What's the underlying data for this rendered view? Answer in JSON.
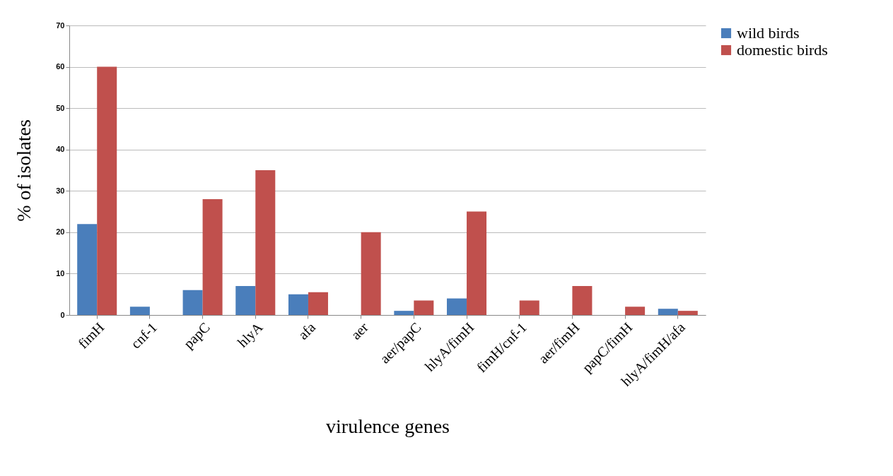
{
  "chart_data": {
    "type": "bar",
    "xlabel": "virulence genes",
    "ylabel": "% of isolates",
    "categories": [
      "fimH",
      "cnf-1",
      "papC",
      "hlyA",
      "afa",
      "aer",
      "aer/papC",
      "hlyA/fimH",
      "fimH/cnf-1",
      "aer/fimH",
      "papC/fimH",
      "hlyA/fimH/afa"
    ],
    "series": [
      {
        "name": "wild birds",
        "color": "#4a7ebb",
        "values": [
          22,
          2,
          6,
          7,
          5,
          0,
          1,
          4,
          0,
          0,
          0,
          1.5
        ]
      },
      {
        "name": "domestic birds",
        "color": "#c0504d",
        "values": [
          60,
          0,
          28,
          35,
          5.5,
          20,
          3.5,
          25,
          3.5,
          7,
          2,
          1
        ]
      }
    ],
    "ylim": [
      0,
      70
    ],
    "yticks": [
      0,
      10,
      20,
      30,
      40,
      50,
      60,
      70
    ],
    "grid": "y",
    "legend": "right"
  }
}
